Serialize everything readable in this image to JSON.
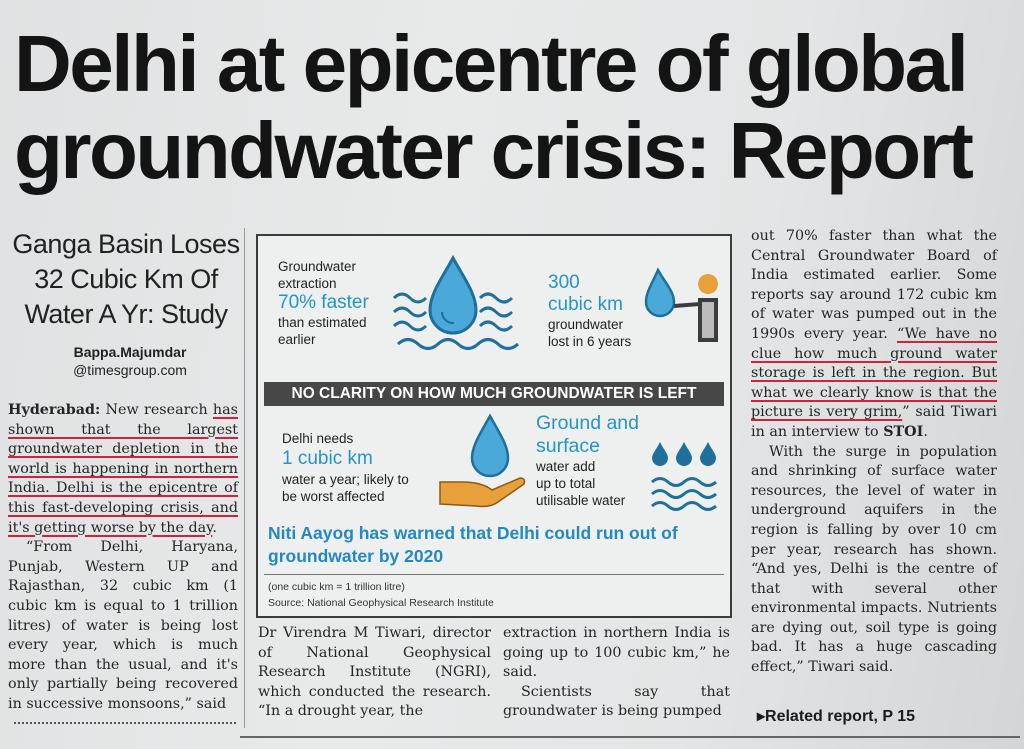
{
  "headline": {
    "line1": "Delhi at epicentre of global",
    "line2": "groundwater crisis: Report"
  },
  "subhead": [
    "Ganga Basin Loses",
    "32 Cubic Km Of",
    "Water A Yr: Study"
  ],
  "byline": {
    "author": "Bappa.Majumdar",
    "email": "@timesgroup.com"
  },
  "col1": {
    "dateline": "Hyderabad:",
    "p1_a": " New research ",
    "p1_u": "has shown that the largest groundwater depletion in the world is happening in northern India. Delhi is the epicentre of this fast-developing crisis, and it's getting worse by the day",
    "p1_end": ".",
    "p2": "“From Delhi, Haryana, Punjab, Western UP and Rajasthan, 32 cubic km (1 cubic km is equal to 1 trillion litres) of water is being lost every year, which is much more than the usual, and it's only partially being recovered in successive monsoons,” said"
  },
  "col2": "Dr Virendra M Tiwari, director of National Geophysical Research Institute (NGRI), which conducted the research. “In a drought year, the",
  "col3": {
    "p1": "extraction in northern India is going up to 100 cubic km,” he said.",
    "p2": "Scientists say that groundwater is being pumped"
  },
  "col4": {
    "p1_a": "out 70% faster than what the Central Groundwater Board of India estimated earlier. Some reports say around 172 cubic km of water was pumped out in the 1990s every year. ",
    "p1_u": "“We have no clue how much ground water storage is left in the region. But what we clearly know is that the picture is very grim,",
    "p1_b": "” said Tiwari in an interview to ",
    "p1_stoi": "STOI",
    "p1_end": ".",
    "p2": "With the surge in population and shrinking of surface water resources, the level of water in underground aquifers in the region is falling by over 10 cm per year, research has shown. “And yes, Delhi is the centre of that with several other environmental impacts. Nutrients are dying out, soil type is going bad. It has a huge cascading effect,” Tiwari said."
  },
  "related": "▸Related report, P 15",
  "infographic": {
    "box1": {
      "l1": "Groundwater",
      "l2": "extraction",
      "highlight": "70% faster",
      "l3": "than estimated",
      "l4": "earlier"
    },
    "box2": {
      "highlight1": "300",
      "highlight2": "cubic km",
      "l1": "groundwater",
      "l2": "lost in 6 years"
    },
    "band": "NO CLARITY ON HOW MUCH GROUNDWATER IS LEFT",
    "box3": {
      "l1": "Delhi needs",
      "highlight": "1 cubic km",
      "l2": "water a year; likely to",
      "l3": "be worst affected"
    },
    "box4": {
      "highlight1": "Ground and",
      "highlight2": "surface",
      "l1": "water add",
      "l2": "up to total",
      "l3": "utilisable water"
    },
    "niti": "Niti Aayog has warned that Delhi could run out of groundwater by 2020",
    "footnote1": "(one cubic km = 1 trillion litre)",
    "footnote2": "Source: National Geophysical Research Institute"
  },
  "icons": [
    "water-drop-icon",
    "waves-icon",
    "person-with-drop-icon",
    "hand-with-drop-icon",
    "water-drops-waves-icon"
  ],
  "colors": {
    "accent": "#2595c8",
    "underline": "#d2213a",
    "band": "#474747",
    "hand": "#e8a13a"
  }
}
